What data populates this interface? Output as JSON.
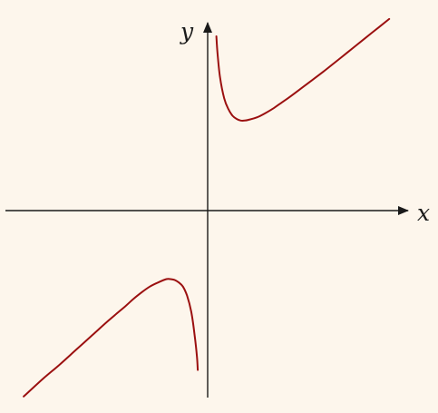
{
  "chart_data": {
    "type": "line",
    "xlabel": "x",
    "ylabel": "y",
    "xlim": [
      -2.44,
      2.44
    ],
    "ylim": [
      -2.44,
      2.44
    ],
    "grid": false,
    "legend": "none",
    "ticks": "none",
    "series": [
      {
        "x": [
          0.105,
          0.12,
          0.15,
          0.2,
          0.25,
          0.3,
          0.35,
          0.4,
          0.45,
          0.5,
          0.6,
          0.7,
          0.8,
          0.9,
          1.0,
          1.2,
          1.4,
          1.6,
          1.8,
          2.0,
          2.2
        ],
        "y": [
          2.11,
          1.9,
          1.61,
          1.36,
          1.23,
          1.15,
          1.11,
          1.09,
          1.09,
          1.1,
          1.13,
          1.18,
          1.24,
          1.31,
          1.38,
          1.53,
          1.68,
          1.84,
          2.0,
          2.16,
          2.32
        ]
      },
      {
        "x": [
          -2.23,
          -2.0,
          -1.8,
          -1.6,
          -1.4,
          -1.2,
          -1.0,
          -0.9,
          -0.8,
          -0.7,
          -0.6,
          -0.5,
          -0.45,
          -0.4,
          -0.35,
          -0.3,
          -0.25,
          -0.2,
          -0.16,
          -0.13,
          -0.12
        ],
        "y": [
          -2.25,
          -2.04,
          -1.87,
          -1.69,
          -1.51,
          -1.33,
          -1.16,
          -1.07,
          -0.99,
          -0.92,
          -0.87,
          -0.83,
          -0.83,
          -0.84,
          -0.87,
          -0.92,
          -1.03,
          -1.22,
          -1.49,
          -1.77,
          -1.93
        ]
      }
    ]
  }
}
